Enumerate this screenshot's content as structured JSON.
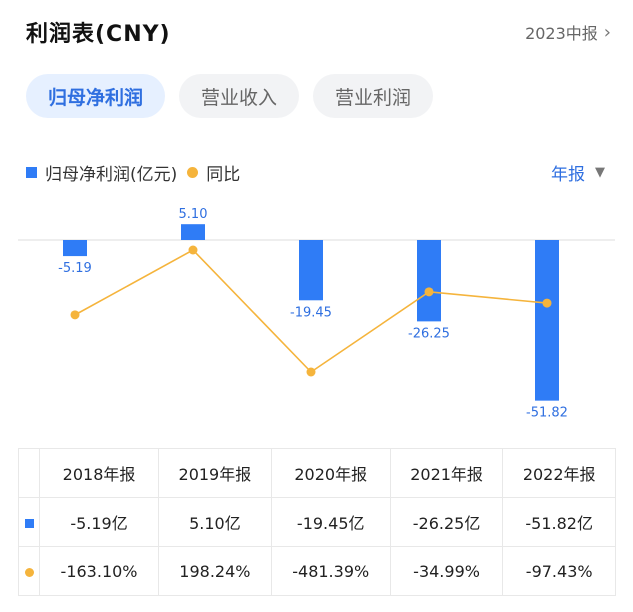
{
  "header": {
    "title": "利润表(CNY)",
    "period": "2023中报"
  },
  "tabs": [
    {
      "label": "归母净利润",
      "active": true
    },
    {
      "label": "营业收入",
      "active": false
    },
    {
      "label": "营业利润",
      "active": false
    }
  ],
  "legend": {
    "series_bar": "归母净利润(亿元)",
    "series_line": "同比"
  },
  "frequency": "年报",
  "colors": {
    "bar": "#2f7cf6",
    "line": "#f5b43c",
    "accent": "#2f6fe0",
    "positive": "#e05050",
    "negative": "#2ea06a"
  },
  "chart_data": {
    "type": "bar",
    "categories": [
      "2018年报",
      "2019年报",
      "2020年报",
      "2021年报",
      "2022年报"
    ],
    "series": [
      {
        "name": "归母净利润(亿元)",
        "type": "bar",
        "values": [
          -5.19,
          5.1,
          -19.45,
          -26.25,
          -51.82
        ],
        "labels": [
          "-5.19",
          "5.10",
          "-19.45",
          "-26.25",
          "-51.82"
        ]
      },
      {
        "name": "同比",
        "type": "line",
        "values": [
          -163.1,
          198.24,
          -481.39,
          -34.99,
          -97.43
        ]
      }
    ]
  },
  "table": {
    "headers": [
      "2018年报",
      "2019年报",
      "2020年报",
      "2021年报",
      "2022年报"
    ],
    "profit_row": [
      "-5.19亿",
      "5.10亿",
      "-19.45亿",
      "-26.25亿",
      "-51.82亿"
    ],
    "yoy_row": [
      "-163.10%",
      "198.24%",
      "-481.39%",
      "-34.99%",
      "-97.43%"
    ]
  }
}
